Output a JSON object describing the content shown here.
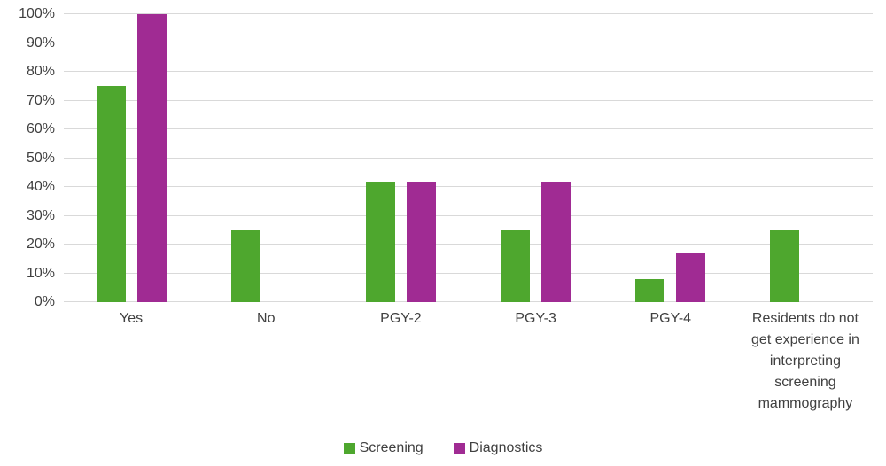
{
  "chart_data": {
    "type": "bar",
    "categories": [
      "Yes",
      "No",
      "PGY-2",
      "PGY-3",
      "PGY-4",
      "Residents do not get experience in interpreting screening mammography"
    ],
    "series": [
      {
        "name": "Screening",
        "color": "#4EA72E",
        "values": [
          75,
          25,
          42,
          25,
          8,
          25
        ]
      },
      {
        "name": "Diagnostics",
        "color": "#A02B93",
        "values": [
          100,
          null,
          42,
          42,
          17,
          null
        ]
      }
    ],
    "y_ticks": [
      "0%",
      "10%",
      "20%",
      "30%",
      "40%",
      "50%",
      "60%",
      "70%",
      "80%",
      "90%",
      "100%"
    ],
    "ylim": [
      0,
      100
    ],
    "grid": true,
    "gridline_color": "#D9D9D9",
    "label_color": "#404040",
    "legend_position": "bottom",
    "title": "",
    "xlabel": "",
    "ylabel": ""
  }
}
